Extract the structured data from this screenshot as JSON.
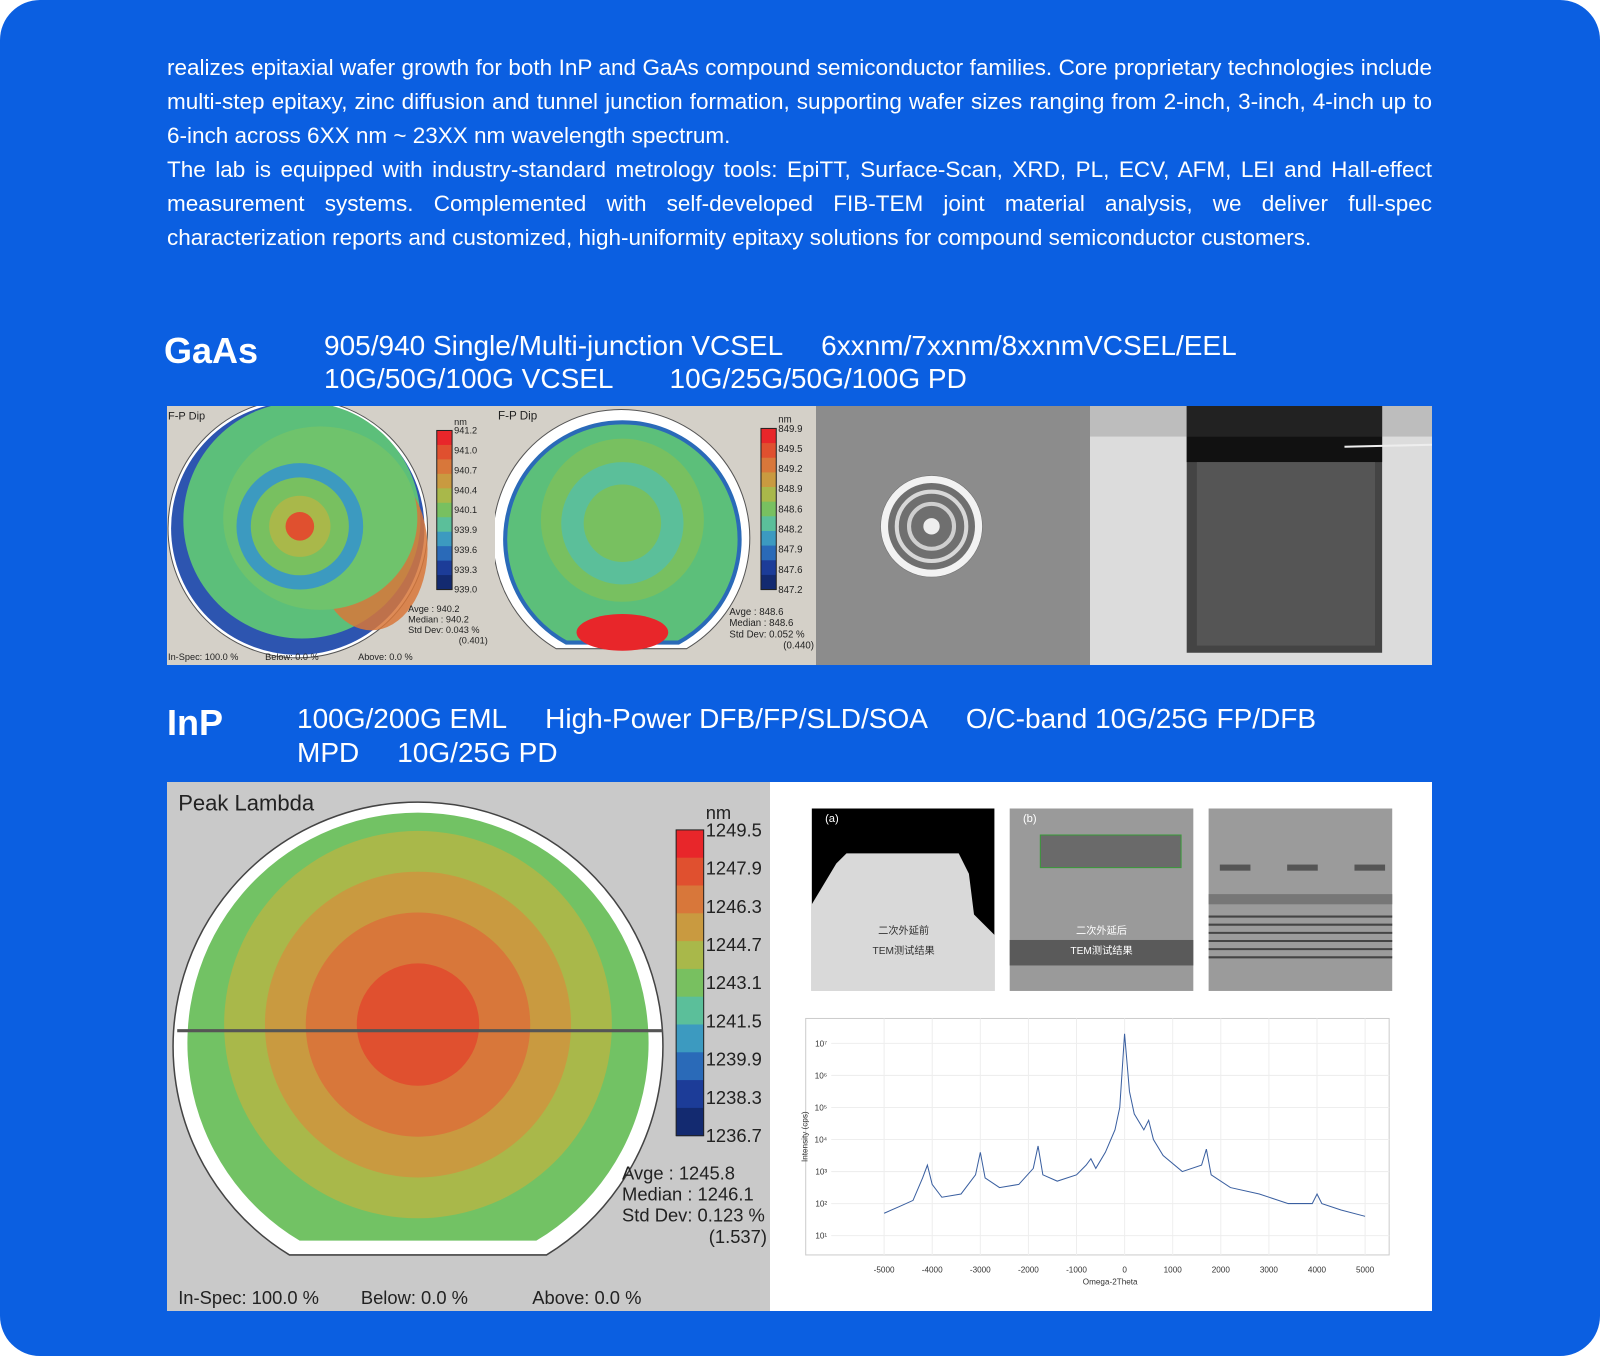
{
  "intro": {
    "paragraphs": [
      "realizes epitaxial wafer growth for both InP and GaAs compound semiconductor families. Core proprietary technologies include multi-step epitaxy, zinc diffusion and tunnel junction formation, supporting wafer sizes ranging from 2-inch, 3-inch, 4-inch up to 6-inch across 6XX nm ~ 23XX nm wavelength spectrum.",
      "The lab is equipped with industry-standard metrology tools: EpiTT, Surface-Scan, XRD, PL, ECV, AFM, LEI and Hall-effect measurement systems. Complemented with self-developed FIB-TEM joint material analysis, we deliver full-spec characterization reports and customized, high-uniformity epitaxy solutions for compound semiconductor customers."
    ]
  },
  "gaas": {
    "title": "GaAs",
    "product_lines": [
      [
        "905/940 Single/Multi-junction VCSEL",
        "6xxnm/7xxnm/8xxnmVCSEL/EEL"
      ],
      [
        "10G/50G/100G VCSEL",
        "10G/25G/50G/100G PD"
      ]
    ],
    "map_1": {
      "title": "F-P Dip",
      "unit": "nm",
      "scale_labels": [
        "941.2",
        "941.0",
        "940.7",
        "940.4",
        "940.1",
        "939.9",
        "939.6",
        "939.3",
        "939.0"
      ],
      "stats": [
        "Avge   :  940.2",
        "Median :  940.2",
        "Std Dev: 0.043 %",
        "(0.401)"
      ],
      "footer": [
        "In-Spec: 100.0 %",
        "Below:  0.0 %",
        "Above:  0.0 %"
      ]
    },
    "map_2": {
      "title": "F-P Dip",
      "unit": "nm",
      "scale_labels": [
        "849.9",
        "849.5",
        "849.2",
        "848.9",
        "848.6",
        "848.2",
        "847.9",
        "847.6",
        "847.2"
      ],
      "stats": [
        "Avge   :  848.6",
        "Median :  848.6",
        "Std Dev: 0.052 %",
        "(0.440)"
      ]
    }
  },
  "inp": {
    "title": "InP",
    "product_lines": [
      [
        "100G/200G EML",
        "High-Power DFB/FP/SLD/SOA",
        "O/C-band 10G/25G FP/DFB"
      ],
      [
        "MPD",
        "10G/25G PD"
      ]
    ],
    "map": {
      "title": "Peak Lambda",
      "unit": "nm",
      "scale_labels": [
        "1249.5",
        "1247.9",
        "1246.3",
        "1244.7",
        "1243.1",
        "1241.5",
        "1239.9",
        "1238.3",
        "1236.7"
      ],
      "stats": [
        "Avge   : 1245.8",
        "Median : 1246.1",
        "Std Dev: 0.123 %",
        "(1.537)"
      ],
      "footer": [
        "In-Spec: 100.0 %",
        "Below:  0.0 %",
        "Above:  0.0 %"
      ]
    },
    "tem": {
      "panel_a": {
        "tag": "(a)",
        "caption": [
          "二次外延前",
          "TEM测试结果"
        ]
      },
      "panel_b": {
        "tag": "(b)",
        "caption": [
          "二次外延后",
          "TEM测试结果"
        ]
      }
    },
    "xrd_chart": {
      "type": "line",
      "y_label": "Intensity (cps)",
      "x_label": "Omega-2Theta",
      "log_scale_y": true,
      "grid": true,
      "x": [
        -5000,
        -4700,
        -4400,
        -4200,
        -4100,
        -4000,
        -3800,
        -3400,
        -3100,
        -3000,
        -2900,
        -2600,
        -2200,
        -1900,
        -1800,
        -1700,
        -1400,
        -1000,
        -800,
        -700,
        -600,
        -400,
        -200,
        -100,
        0,
        100,
        200,
        400,
        500,
        600,
        800,
        1200,
        1600,
        1700,
        1800,
        2200,
        2800,
        3400,
        3900,
        4000,
        4100,
        4500,
        5000
      ],
      "series": [
        {
          "color": "#3a5fa0",
          "values": [
            50,
            79,
            126,
            631,
            1585,
            398,
            158,
            200,
            794,
            3981,
            631,
            316,
            398,
            1259,
            6310,
            794,
            501,
            794,
            1585,
            2512,
            1259,
            3981,
            19953,
            100000,
            19952623,
            316228,
            63096,
            19953,
            39811,
            10000,
            3162,
            1000,
            1585,
            5012,
            794,
            316,
            200,
            100,
            100,
            200,
            100,
            63,
            40
          ]
        }
      ],
      "xlim": [
        -6100,
        5500
      ],
      "ylim": [
        2.5,
        60000000
      ],
      "xticks": [
        -5000,
        -4000,
        -3000,
        -2000,
        -1000,
        0,
        1000,
        2000,
        3000,
        4000,
        5000
      ],
      "yticks": [
        {
          "value": 10,
          "label": "10¹"
        },
        {
          "value": 100,
          "label": "10²"
        },
        {
          "value": 1000,
          "label": "10³"
        },
        {
          "value": 10000,
          "label": "10⁴"
        },
        {
          "value": 100000,
          "label": "10⁵"
        },
        {
          "value": 1000000,
          "label": "10⁶"
        },
        {
          "value": 10000000,
          "label": "10⁷"
        }
      ]
    }
  }
}
